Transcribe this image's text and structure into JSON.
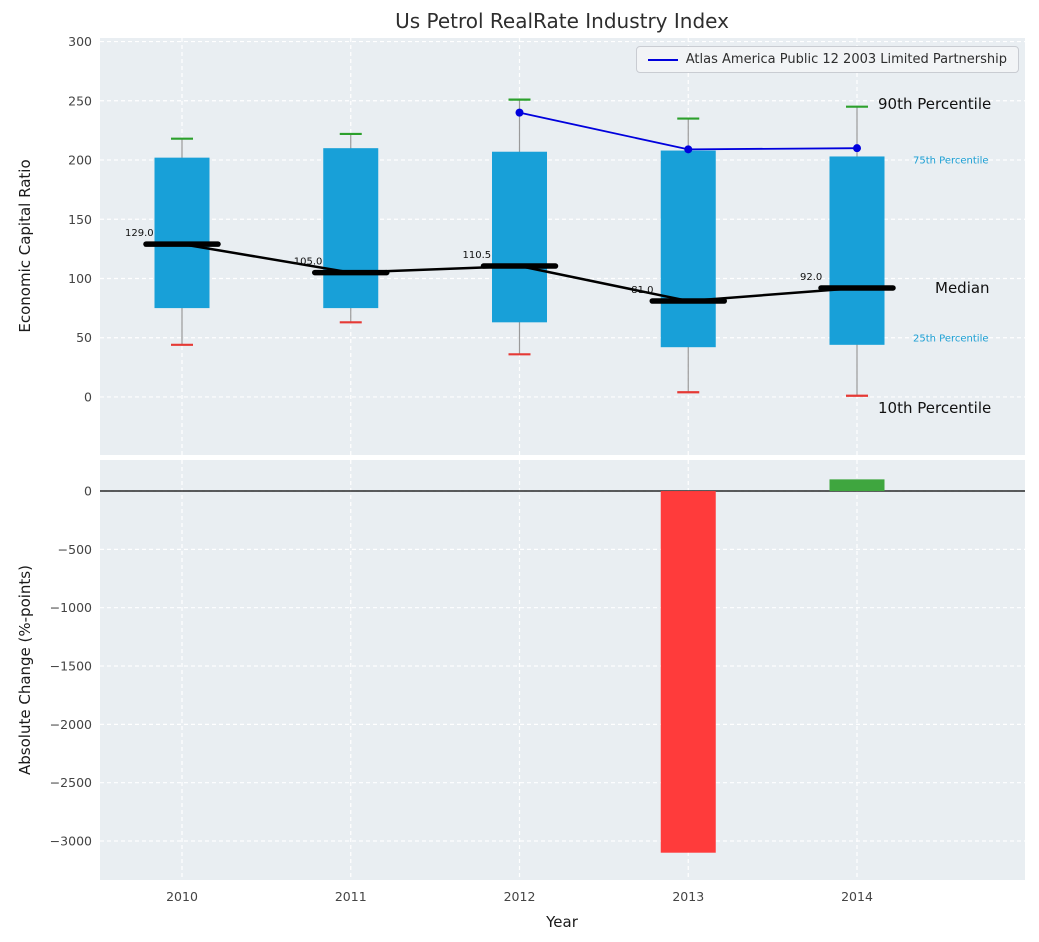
{
  "title": "Us Petrol RealRate Industry Index",
  "legend": {
    "label": "Atlas America Public 12 2003 Limited Partnership"
  },
  "annotations": {
    "p90": "90th Percentile",
    "p75": "75th Percentile",
    "median": "Median",
    "p25": "25th Percentile",
    "p10": "10th Percentile"
  },
  "colors": {
    "plot_background": "#e9eef2",
    "box_fill": "#18a0d8",
    "whisker": "#9a9a9a",
    "cap_high": "#2ca02c",
    "cap_low": "#e53935",
    "median": "#000000",
    "company_line": "#0000dd",
    "bar_negative": "#ff3b3b",
    "bar_positive": "#3fa63f",
    "annotation_small": "#1b9fd4"
  },
  "chart_data": [
    {
      "type": "box-percentile",
      "title": "Us Petrol RealRate Industry Index",
      "ylabel": "Economic Capital Ratio",
      "ylim": [
        -49,
        303
      ],
      "yticks": [
        0,
        50,
        100,
        150,
        200,
        250,
        300
      ],
      "grid": true,
      "legend_position": "upper right",
      "categories": [
        "2010",
        "2011",
        "2012",
        "2013",
        "2014"
      ],
      "boxes": [
        {
          "category": "2010",
          "p10": 44,
          "p25": 75,
          "median": 129.0,
          "p75": 202,
          "p90": 218,
          "label": "129.0"
        },
        {
          "category": "2011",
          "p10": 63,
          "p25": 75,
          "median": 105.0,
          "p75": 210,
          "p90": 222,
          "label": "105.0"
        },
        {
          "category": "2012",
          "p10": 36,
          "p25": 63,
          "median": 110.5,
          "p75": 207,
          "p90": 251,
          "label": "110.5"
        },
        {
          "category": "2013",
          "p10": 4,
          "p25": 42,
          "median": 81.0,
          "p75": 208,
          "p90": 235,
          "label": "81.0"
        },
        {
          "category": "2014",
          "p10": 1,
          "p25": 44,
          "median": 92.0,
          "p75": 203,
          "p90": 245,
          "label": "92.0"
        }
      ],
      "series": [
        {
          "name": "Atlas America Public 12 2003 Limited Partnership",
          "x": [
            "2012",
            "2013",
            "2014"
          ],
          "values": [
            240,
            209,
            210
          ]
        }
      ]
    },
    {
      "type": "bar",
      "ylabel": "Absolute Change (%-points)",
      "xlabel": "Year",
      "ylim": [
        -3334,
        266
      ],
      "yticks": [
        0,
        -500,
        -1000,
        -1500,
        -2000,
        -2500,
        -3000
      ],
      "grid": true,
      "categories": [
        "2010",
        "2011",
        "2012",
        "2013",
        "2014"
      ],
      "values": [
        null,
        null,
        null,
        -3100,
        100
      ]
    }
  ]
}
